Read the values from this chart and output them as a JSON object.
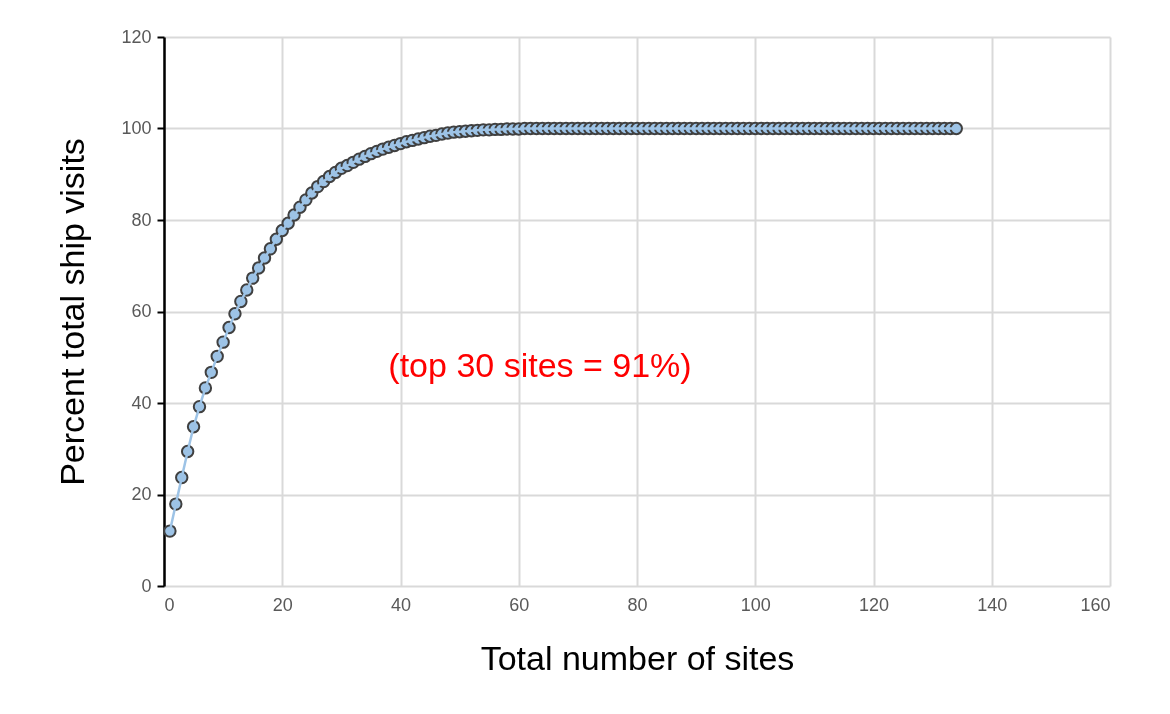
{
  "chart_data": {
    "type": "line",
    "xlabel": "Total number of sites",
    "ylabel": "Percent total ship visits",
    "annotations": [
      "(top 30 sites = 91%)"
    ],
    "x": [
      1,
      2,
      3,
      4,
      5,
      6,
      7,
      8,
      9,
      10,
      11,
      12,
      13,
      14,
      15,
      16,
      17,
      18,
      19,
      20,
      21,
      22,
      23,
      24,
      25,
      26,
      27,
      28,
      29,
      30,
      31,
      32,
      33,
      34,
      35,
      36,
      37,
      38,
      39,
      40,
      41,
      42,
      43,
      44,
      45,
      46,
      47,
      48,
      49,
      50,
      51,
      52,
      53,
      54,
      55,
      56,
      57,
      58,
      59,
      60,
      61,
      62,
      63,
      64,
      65,
      66,
      67,
      68,
      69,
      70,
      71,
      72,
      73,
      74,
      75,
      76,
      77,
      78,
      79,
      80,
      81,
      82,
      83,
      84,
      85,
      86,
      87,
      88,
      89,
      90,
      91,
      92,
      93,
      94,
      95,
      96,
      97,
      98,
      99,
      100,
      101,
      102,
      103,
      104,
      105,
      106,
      107,
      108,
      109,
      110,
      111,
      112,
      113,
      114,
      115,
      116,
      117,
      118,
      119,
      120,
      121,
      122,
      123,
      124,
      125,
      126,
      127,
      128,
      129,
      130,
      131,
      132,
      133,
      134
    ],
    "series": [
      {
        "color": "#9dc3e6",
        "values": [
          12.0,
          17.9,
          23.7,
          29.4,
          34.8,
          39.2,
          43.3,
          46.7,
          50.2,
          53.3,
          56.5,
          59.5,
          62.2,
          64.7,
          67.3,
          69.5,
          71.7,
          73.7,
          75.8,
          77.7,
          79.3,
          81.1,
          82.8,
          84.4,
          85.9,
          87.3,
          88.4,
          89.5,
          90.4,
          91.3,
          91.9,
          92.6,
          93.3,
          93.9,
          94.5,
          95.0,
          95.5,
          95.9,
          96.3,
          96.7,
          97.1,
          97.4,
          97.7,
          98.0,
          98.3,
          98.5,
          98.8,
          99.0,
          99.2,
          99.3,
          99.4,
          99.5,
          99.6,
          99.7,
          99.7,
          99.8,
          99.8,
          99.9,
          99.9,
          99.9,
          100,
          100,
          100,
          100,
          100,
          100,
          100,
          100,
          100,
          100,
          100,
          100,
          100,
          100,
          100,
          100,
          100,
          100,
          100,
          100,
          100,
          100,
          100,
          100,
          100,
          100,
          100,
          100,
          100,
          100,
          100,
          100,
          100,
          100,
          100,
          100,
          100,
          100,
          100,
          100,
          100,
          100,
          100,
          100,
          100,
          100,
          100,
          100,
          100,
          100,
          100,
          100,
          100,
          100,
          100,
          100,
          100,
          100,
          100,
          100,
          100,
          100,
          100,
          100,
          100,
          100,
          100,
          100,
          100,
          100,
          100,
          100,
          100,
          100
        ]
      }
    ],
    "xlim": [
      0,
      160
    ],
    "xticks": [
      0,
      20,
      40,
      60,
      80,
      100,
      120,
      140,
      160
    ],
    "ylim": [
      0,
      120
    ],
    "yticks": [
      0,
      20,
      40,
      60,
      80,
      100,
      120
    ],
    "grid": true,
    "marker": "circle",
    "line_style": "solid"
  }
}
